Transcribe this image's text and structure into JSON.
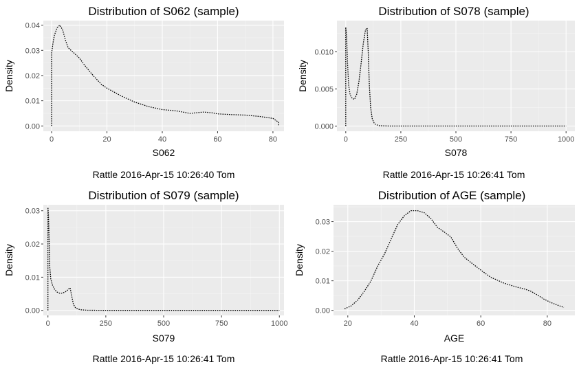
{
  "chart_data": [
    {
      "type": "line",
      "title": "Distribution of S062 (sample)",
      "xlabel": "S062",
      "ylabel": "Density",
      "footer": "Rattle 2016-Apr-15 10:26:40 Tom",
      "xlim": [
        -3,
        84
      ],
      "ylim": [
        -0.0021,
        0.0418
      ],
      "xticks": [
        0,
        20,
        40,
        60,
        80
      ],
      "xtick_labels": [
        "0",
        "20",
        "40",
        "60",
        "80"
      ],
      "yticks": [
        0,
        0.01,
        0.02,
        0.03,
        0.04
      ],
      "ytick_labels": [
        "0.00",
        "0.01",
        "0.02",
        "0.03",
        "0.04"
      ],
      "grid": true,
      "series": [
        {
          "line_color": "#000000",
          "line_style": "dotted",
          "x": [
            0,
            0,
            0.5,
            1,
            2,
            3,
            4,
            5,
            6,
            8,
            10,
            12,
            15,
            18,
            20,
            25,
            30,
            35,
            40,
            45,
            50,
            55,
            58,
            60,
            65,
            70,
            75,
            80,
            82,
            82
          ],
          "y": [
            0,
            0.029,
            0.033,
            0.036,
            0.039,
            0.04,
            0.038,
            0.034,
            0.031,
            0.029,
            0.027,
            0.024,
            0.02,
            0.0165,
            0.015,
            0.012,
            0.0095,
            0.0077,
            0.0065,
            0.006,
            0.005,
            0.0055,
            0.0052,
            0.0048,
            0.0045,
            0.0043,
            0.0038,
            0.003,
            0.0015,
            0
          ]
        }
      ]
    },
    {
      "type": "line",
      "title": "Distribution of S078 (sample)",
      "xlabel": "S078",
      "ylabel": "Density",
      "footer": "Rattle 2016-Apr-15 10:26:41 Tom",
      "xlim": [
        -40,
        1040
      ],
      "ylim": [
        -0.0007,
        0.0142
      ],
      "xticks": [
        0,
        250,
        500,
        750,
        1000
      ],
      "xtick_labels": [
        "0",
        "250",
        "500",
        "750",
        "1000"
      ],
      "yticks": [
        0,
        0.005,
        0.01
      ],
      "ytick_labels": [
        "0.000",
        "0.005",
        "0.010"
      ],
      "grid": true,
      "series": [
        {
          "line_color": "#000000",
          "line_style": "dotted",
          "x": [
            0,
            0,
            4,
            8,
            13,
            20,
            30,
            40,
            50,
            60,
            70,
            80,
            90,
            97,
            102,
            107,
            113,
            120,
            130,
            150,
            200,
            300,
            500,
            750,
            1000,
            1000
          ],
          "y": [
            0,
            0.0133,
            0.012,
            0.0085,
            0.0055,
            0.0042,
            0.0037,
            0.0036,
            0.0043,
            0.006,
            0.0085,
            0.0112,
            0.013,
            0.0132,
            0.01,
            0.0055,
            0.0025,
            0.001,
            0.0003,
            5e-05,
            0,
            0,
            0,
            0,
            0,
            0
          ]
        }
      ]
    },
    {
      "type": "line",
      "title": "Distribution of S079 (sample)",
      "xlabel": "S079",
      "ylabel": "Density",
      "footer": "Rattle 2016-Apr-15 10:26:41 Tom",
      "xlim": [
        -20,
        1020
      ],
      "ylim": [
        -0.0015,
        0.0318
      ],
      "xticks": [
        0,
        250,
        500,
        750,
        1000
      ],
      "xtick_labels": [
        "0",
        "250",
        "500",
        "750",
        "1000"
      ],
      "yticks": [
        0,
        0.01,
        0.02,
        0.03
      ],
      "ytick_labels": [
        "0.00",
        "0.01",
        "0.02",
        "0.03"
      ],
      "grid": true,
      "series": [
        {
          "line_color": "#000000",
          "line_style": "dotted",
          "x": [
            0,
            0,
            2,
            4,
            6,
            8,
            12,
            20,
            30,
            40,
            50,
            60,
            70,
            80,
            90,
            96,
            102,
            110,
            120,
            140,
            170,
            250,
            500,
            750,
            1000,
            1000
          ],
          "y": [
            0,
            0.031,
            0.029,
            0.024,
            0.018,
            0.013,
            0.0095,
            0.0075,
            0.0062,
            0.0055,
            0.0052,
            0.0052,
            0.0054,
            0.0058,
            0.0065,
            0.0068,
            0.0045,
            0.0018,
            0.0007,
            0.0002,
            5e-05,
            0,
            0,
            0,
            0,
            0
          ]
        }
      ]
    },
    {
      "type": "line",
      "title": "Distribution of AGE (sample)",
      "xlabel": "AGE",
      "ylabel": "Density",
      "footer": "Rattle 2016-Apr-15 10:26:41 Tom",
      "xlim": [
        15.7,
        88.3
      ],
      "ylim": [
        -0.0017,
        0.0357
      ],
      "xticks": [
        20,
        40,
        60,
        80
      ],
      "xtick_labels": [
        "20",
        "40",
        "60",
        "80"
      ],
      "yticks": [
        0,
        0.01,
        0.02,
        0.03
      ],
      "ytick_labels": [
        "0.00",
        "0.01",
        "0.02",
        "0.03"
      ],
      "grid": true,
      "series": [
        {
          "line_color": "#000000",
          "line_style": "dotted",
          "x": [
            19,
            21,
            23,
            25,
            27,
            29,
            31,
            33,
            35,
            37,
            39,
            41,
            43,
            45,
            47,
            49,
            51,
            53,
            55,
            57,
            59,
            61,
            63,
            65,
            67,
            69,
            71,
            73,
            75,
            77,
            79,
            81,
            83,
            85
          ],
          "y": [
            0.0005,
            0.0015,
            0.0035,
            0.0065,
            0.01,
            0.015,
            0.019,
            0.024,
            0.029,
            0.032,
            0.0337,
            0.0337,
            0.033,
            0.031,
            0.028,
            0.0265,
            0.0248,
            0.021,
            0.018,
            0.0162,
            0.0145,
            0.0128,
            0.0112,
            0.0102,
            0.0092,
            0.0085,
            0.0078,
            0.0073,
            0.0065,
            0.0052,
            0.0038,
            0.0027,
            0.0018,
            0.001
          ]
        }
      ]
    }
  ]
}
